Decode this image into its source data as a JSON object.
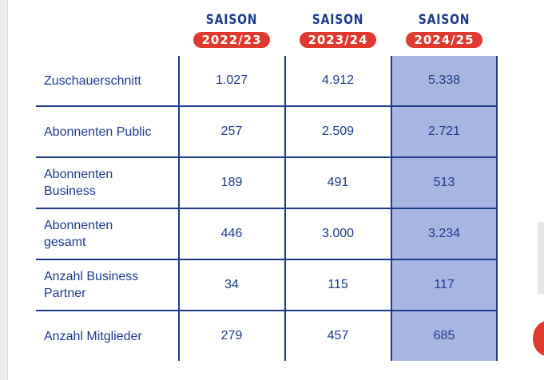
{
  "columns": [
    {
      "saison": "SAISON",
      "year": "2022/23"
    },
    {
      "saison": "SAISON",
      "year": "2023/24"
    },
    {
      "saison": "SAISON",
      "year": "2024/25"
    }
  ],
  "rows": [
    {
      "label": "Zuschauerschnitt",
      "values": [
        "1.027",
        "4.912",
        "5.338"
      ]
    },
    {
      "label": "Abonnenten Public",
      "values": [
        "257",
        "2.509",
        "2.721"
      ]
    },
    {
      "label": "Abonnenten Business",
      "values": [
        "189",
        "491",
        "513"
      ]
    },
    {
      "label": "Abonnenten gesamt",
      "values": [
        "446",
        "3.000",
        "3.234"
      ]
    },
    {
      "label": "Anzahl Business Partner",
      "values": [
        "34",
        "115",
        "117"
      ]
    },
    {
      "label": "Anzahl Mitglieder",
      "values": [
        "279",
        "457",
        "685"
      ]
    }
  ],
  "colors": {
    "primary": "#1c3a8c",
    "accent": "#e03a2f",
    "highlight": "#a6b6e0"
  }
}
